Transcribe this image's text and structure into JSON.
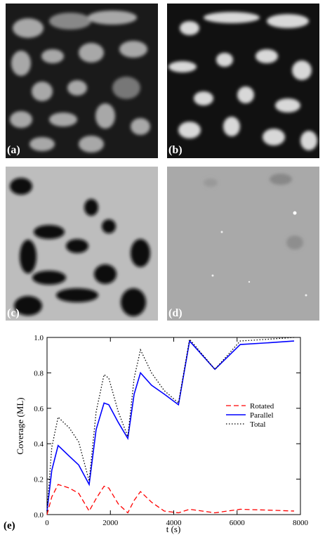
{
  "panels": [
    {
      "label": "(a)"
    },
    {
      "label": "(b)"
    },
    {
      "label": "(c)"
    },
    {
      "label": "(d)"
    }
  ],
  "chart_data": {
    "type": "line",
    "panel_label": "(e)",
    "x_label": "t (s)",
    "y_label": "Coverage (ML)",
    "x": [
      0,
      150,
      350,
      700,
      1000,
      1330,
      1550,
      1800,
      1950,
      2250,
      2550,
      2750,
      2950,
      3300,
      3700,
      4150,
      4500,
      5300,
      6100,
      7000,
      7800
    ],
    "series": [
      {
        "name": "Rotated",
        "color": "#ff0000",
        "dash": "dashed",
        "values": [
          0.0,
          0.1,
          0.17,
          0.15,
          0.12,
          0.02,
          0.09,
          0.16,
          0.15,
          0.06,
          0.01,
          0.08,
          0.13,
          0.07,
          0.02,
          0.01,
          0.03,
          0.01,
          0.03,
          0.025,
          0.02
        ]
      },
      {
        "name": "Parallel",
        "color": "#0000ff",
        "dash": "solid",
        "values": [
          0.02,
          0.25,
          0.39,
          0.33,
          0.28,
          0.17,
          0.48,
          0.63,
          0.62,
          0.52,
          0.43,
          0.68,
          0.8,
          0.73,
          0.68,
          0.62,
          0.98,
          0.82,
          0.96,
          0.97,
          0.98
        ]
      },
      {
        "name": "Total",
        "color": "#000000",
        "dash": "dotted",
        "values": [
          0.02,
          0.38,
          0.55,
          0.49,
          0.41,
          0.19,
          0.58,
          0.79,
          0.77,
          0.58,
          0.44,
          0.77,
          0.93,
          0.8,
          0.7,
          0.63,
          0.99,
          0.82,
          0.98,
          0.99,
          1.0
        ]
      }
    ],
    "xlim": [
      0,
      8000
    ],
    "xticks": [
      0,
      2000,
      4000,
      6000,
      8000
    ],
    "ylim": [
      0,
      1
    ],
    "yticks": [
      {
        "value": 0,
        "label": "0.0"
      },
      {
        "value": 0.2,
        "label": "0.2"
      },
      {
        "value": 0.4,
        "label": "0.4"
      },
      {
        "value": 0.6,
        "label": "0.6"
      },
      {
        "value": 0.8,
        "label": "0.8"
      },
      {
        "value": 1,
        "label": "1.0"
      }
    ],
    "grid": false
  }
}
